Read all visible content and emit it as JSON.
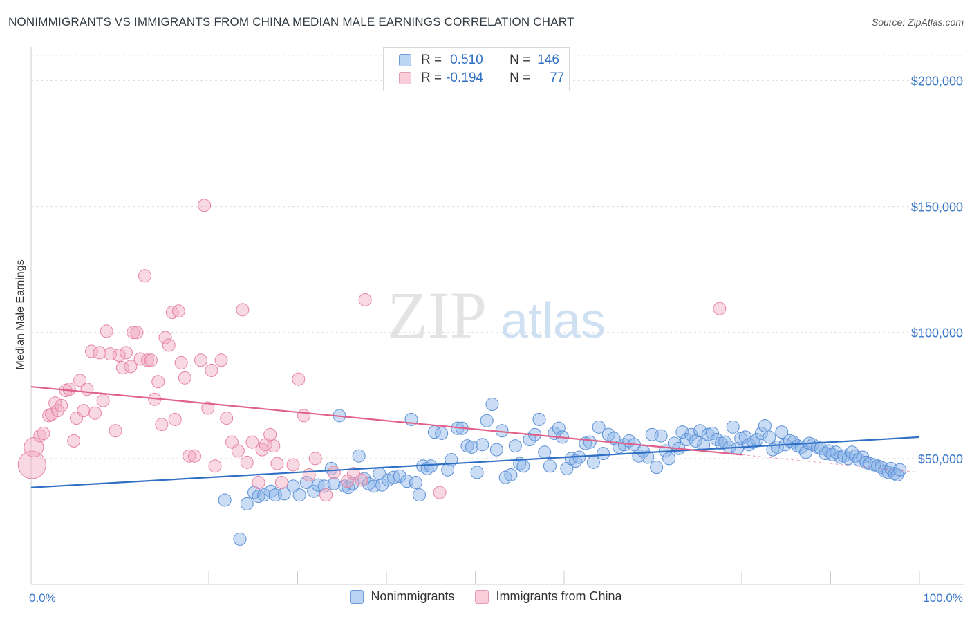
{
  "title": "NONIMMIGRANTS VS IMMIGRANTS FROM CHINA MEDIAN MALE EARNINGS CORRELATION CHART",
  "source": "Source: ZipAtlas.com",
  "watermark": {
    "zip": "ZIP",
    "atlas": "atlas"
  },
  "legend_top": {
    "rows": [
      {
        "r_label": "R =",
        "r_value": "0.510",
        "n_label": "N =",
        "n_value": "146",
        "color": "#8ab4e8"
      },
      {
        "r_label": "R =",
        "r_value": "-0.194",
        "n_label": "N =",
        "n_value": "77",
        "color": "#f0a8bf"
      }
    ]
  },
  "chart_data": {
    "type": "scatter",
    "title": "NONIMMIGRANTS VS IMMIGRANTS FROM CHINA MEDIAN MALE EARNINGS CORRELATION CHART",
    "xlabel": "",
    "ylabel": "Median Male Earnings",
    "xlim": [
      0,
      100
    ],
    "ylim": [
      0,
      210000
    ],
    "x_tick_labels": [
      "0.0%",
      "100.0%"
    ],
    "y_ticks": [
      50000,
      100000,
      150000,
      200000
    ],
    "y_tick_labels": [
      "$50,000",
      "$100,000",
      "$150,000",
      "$200,000"
    ],
    "grid": true,
    "legend_placement": "top-center",
    "series": [
      {
        "name": "Nonimmigrants",
        "color": "#8ab4e8",
        "stroke": "#5a8fd6",
        "trend": {
          "x": [
            0,
            100
          ],
          "y": [
            38500,
            58500
          ],
          "color": "#2f6fc4"
        },
        "points": [
          [
            21.8,
            33500
          ],
          [
            23.5,
            18000
          ],
          [
            24.3,
            32000
          ],
          [
            25.1,
            36500
          ],
          [
            25.6,
            35000
          ],
          [
            26.2,
            35500
          ],
          [
            27.0,
            37000
          ],
          [
            27.5,
            35500
          ],
          [
            28.5,
            36000
          ],
          [
            29.5,
            39000
          ],
          [
            30.2,
            35500
          ],
          [
            31.0,
            40500
          ],
          [
            31.8,
            37000
          ],
          [
            32.3,
            39500
          ],
          [
            33.0,
            39000
          ],
          [
            33.8,
            46000
          ],
          [
            34.1,
            40000
          ],
          [
            34.7,
            67000
          ],
          [
            35.3,
            39000
          ],
          [
            35.7,
            38500
          ],
          [
            36.2,
            40000
          ],
          [
            36.9,
            51000
          ],
          [
            37.5,
            42000
          ],
          [
            38.0,
            40000
          ],
          [
            38.6,
            39000
          ],
          [
            39.2,
            44000
          ],
          [
            39.5,
            39500
          ],
          [
            40.2,
            41500
          ],
          [
            40.8,
            42500
          ],
          [
            41.5,
            43000
          ],
          [
            42.3,
            41000
          ],
          [
            42.8,
            65500
          ],
          [
            43.3,
            40500
          ],
          [
            43.7,
            35500
          ],
          [
            44.1,
            47000
          ],
          [
            44.6,
            46000
          ],
          [
            45.0,
            47000
          ],
          [
            45.4,
            60500
          ],
          [
            46.2,
            60000
          ],
          [
            46.9,
            45500
          ],
          [
            47.3,
            49500
          ],
          [
            48.0,
            62000
          ],
          [
            48.5,
            62000
          ],
          [
            49.1,
            55000
          ],
          [
            49.6,
            54500
          ],
          [
            50.2,
            44500
          ],
          [
            50.8,
            55500
          ],
          [
            51.3,
            65000
          ],
          [
            51.9,
            71500
          ],
          [
            52.4,
            53500
          ],
          [
            53.0,
            61000
          ],
          [
            53.4,
            42500
          ],
          [
            54.0,
            43500
          ],
          [
            54.5,
            55000
          ],
          [
            55.0,
            48000
          ],
          [
            55.4,
            47000
          ],
          [
            56.1,
            57500
          ],
          [
            56.7,
            59500
          ],
          [
            57.2,
            65500
          ],
          [
            57.8,
            52500
          ],
          [
            58.4,
            47000
          ],
          [
            58.9,
            60000
          ],
          [
            59.4,
            62000
          ],
          [
            59.8,
            58500
          ],
          [
            60.3,
            46000
          ],
          [
            60.8,
            50000
          ],
          [
            61.3,
            49000
          ],
          [
            61.7,
            50500
          ],
          [
            62.4,
            56000
          ],
          [
            62.9,
            56500
          ],
          [
            63.3,
            48500
          ],
          [
            63.9,
            62500
          ],
          [
            64.4,
            52000
          ],
          [
            65.0,
            59500
          ],
          [
            65.6,
            58000
          ],
          [
            66.2,
            54500
          ],
          [
            66.8,
            55500
          ],
          [
            67.3,
            57000
          ],
          [
            67.9,
            55500
          ],
          [
            68.4,
            51000
          ],
          [
            68.9,
            53000
          ],
          [
            69.4,
            50500
          ],
          [
            69.9,
            59500
          ],
          [
            70.4,
            46500
          ],
          [
            70.9,
            59000
          ],
          [
            71.4,
            53000
          ],
          [
            71.8,
            50000
          ],
          [
            72.4,
            56000
          ],
          [
            72.9,
            54000
          ],
          [
            73.3,
            60500
          ],
          [
            73.8,
            57500
          ],
          [
            74.3,
            59500
          ],
          [
            74.8,
            57000
          ],
          [
            75.3,
            61000
          ],
          [
            75.7,
            55500
          ],
          [
            76.2,
            59500
          ],
          [
            76.7,
            60000
          ],
          [
            77.2,
            57500
          ],
          [
            77.7,
            56000
          ],
          [
            78.1,
            56500
          ],
          [
            78.6,
            54500
          ],
          [
            79.0,
            62500
          ],
          [
            79.5,
            54000
          ],
          [
            79.9,
            58000
          ],
          [
            80.4,
            58500
          ],
          [
            80.8,
            55500
          ],
          [
            81.3,
            56500
          ],
          [
            81.7,
            57500
          ],
          [
            82.2,
            60000
          ],
          [
            82.6,
            63000
          ],
          [
            83.1,
            58500
          ],
          [
            83.5,
            53500
          ],
          [
            84.0,
            54500
          ],
          [
            84.5,
            60500
          ],
          [
            84.9,
            55500
          ],
          [
            85.4,
            57000
          ],
          [
            85.8,
            56500
          ],
          [
            86.3,
            55000
          ],
          [
            86.7,
            54500
          ],
          [
            87.2,
            52500
          ],
          [
            87.6,
            56000
          ],
          [
            88.0,
            55500
          ],
          [
            88.5,
            54500
          ],
          [
            88.9,
            54000
          ],
          [
            89.4,
            52000
          ],
          [
            89.8,
            53000
          ],
          [
            90.2,
            51500
          ],
          [
            90.6,
            52500
          ],
          [
            91.1,
            50500
          ],
          [
            91.5,
            51000
          ],
          [
            92.0,
            50000
          ],
          [
            92.4,
            52500
          ],
          [
            92.8,
            51000
          ],
          [
            93.2,
            49500
          ],
          [
            93.6,
            50500
          ],
          [
            94.0,
            48500
          ],
          [
            94.4,
            48000
          ],
          [
            94.9,
            47500
          ],
          [
            95.3,
            47000
          ],
          [
            95.7,
            46500
          ],
          [
            96.1,
            45000
          ],
          [
            96.5,
            44500
          ],
          [
            96.8,
            46000
          ],
          [
            97.2,
            44000
          ],
          [
            97.5,
            43500
          ],
          [
            97.8,
            45500
          ]
        ]
      },
      {
        "name": "Immigrants from China",
        "color": "#f0a8bf",
        "stroke": "#e783a3",
        "trend": {
          "x": [
            0,
            80
          ],
          "y": [
            78500,
            51500
          ],
          "color": "#e0608a",
          "dash_x": [
            80,
            100
          ],
          "dash_y": [
            51500,
            44500
          ]
        },
        "points": [
          [
            0.1,
            47500
          ],
          [
            0.3,
            54500
          ],
          [
            1.0,
            59000
          ],
          [
            1.4,
            60000
          ],
          [
            2.0,
            67000
          ],
          [
            2.3,
            67500
          ],
          [
            2.7,
            72000
          ],
          [
            3.0,
            69000
          ],
          [
            3.4,
            71000
          ],
          [
            3.9,
            77000
          ],
          [
            4.3,
            77500
          ],
          [
            4.8,
            57000
          ],
          [
            5.1,
            66000
          ],
          [
            5.5,
            81000
          ],
          [
            5.9,
            69000
          ],
          [
            6.3,
            77500
          ],
          [
            6.8,
            92500
          ],
          [
            7.2,
            68000
          ],
          [
            7.7,
            92000
          ],
          [
            8.1,
            73000
          ],
          [
            8.5,
            100500
          ],
          [
            8.9,
            91500
          ],
          [
            9.5,
            61000
          ],
          [
            9.9,
            91000
          ],
          [
            10.3,
            86000
          ],
          [
            10.7,
            92000
          ],
          [
            11.2,
            86500
          ],
          [
            11.5,
            100000
          ],
          [
            11.9,
            100000
          ],
          [
            12.3,
            89500
          ],
          [
            12.8,
            122500
          ],
          [
            13.1,
            89000
          ],
          [
            13.5,
            89000
          ],
          [
            13.9,
            73500
          ],
          [
            14.3,
            80500
          ],
          [
            14.7,
            63500
          ],
          [
            15.1,
            98000
          ],
          [
            15.5,
            95000
          ],
          [
            15.9,
            108000
          ],
          [
            16.2,
            65500
          ],
          [
            16.6,
            108500
          ],
          [
            16.9,
            88000
          ],
          [
            17.3,
            82000
          ],
          [
            17.8,
            51000
          ],
          [
            18.4,
            51000
          ],
          [
            19.1,
            89000
          ],
          [
            19.5,
            150500
          ],
          [
            19.9,
            70000
          ],
          [
            20.3,
            85000
          ],
          [
            20.7,
            47000
          ],
          [
            21.4,
            89000
          ],
          [
            22.0,
            66000
          ],
          [
            22.6,
            56500
          ],
          [
            23.3,
            53000
          ],
          [
            23.8,
            109000
          ],
          [
            24.3,
            48500
          ],
          [
            24.9,
            56500
          ],
          [
            25.6,
            40500
          ],
          [
            26.0,
            53500
          ],
          [
            26.4,
            55500
          ],
          [
            26.9,
            59500
          ],
          [
            27.3,
            55000
          ],
          [
            27.7,
            48000
          ],
          [
            28.2,
            40500
          ],
          [
            29.5,
            47500
          ],
          [
            30.1,
            81500
          ],
          [
            30.7,
            67000
          ],
          [
            31.3,
            43500
          ],
          [
            32.0,
            50000
          ],
          [
            33.2,
            35500
          ],
          [
            34.1,
            44500
          ],
          [
            35.6,
            41000
          ],
          [
            36.3,
            44000
          ],
          [
            37.2,
            41500
          ],
          [
            46.0,
            36500
          ],
          [
            37.6,
            113000
          ],
          [
            77.5,
            109500
          ]
        ]
      }
    ]
  },
  "bottom_legend": [
    {
      "label": "Nonimmigrants",
      "color": "#b8d3f3",
      "stroke": "#6f9ddc"
    },
    {
      "label": "Immigrants from China",
      "color": "#f9cdd9",
      "stroke": "#e79bb4"
    }
  ]
}
